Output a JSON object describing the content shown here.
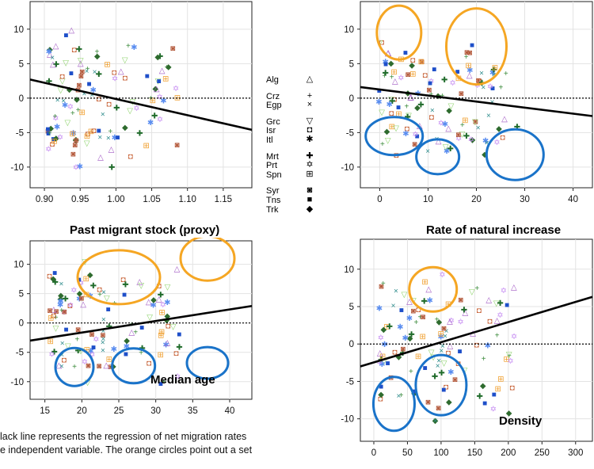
{
  "panels": [
    {
      "id": "migrant",
      "xtitle": "Past migrant stock (proxy)",
      "inner_label": "",
      "x_ticks": [
        "0.90",
        "0.95",
        "1.00",
        "1.05",
        "1.10",
        "1.15"
      ],
      "y_ticks": [
        "10",
        "5",
        "0",
        "-5",
        "-10"
      ]
    },
    {
      "id": "natural",
      "xtitle": "Rate of natural increase",
      "inner_label": "",
      "x_ticks": [
        "0",
        "10",
        "20",
        "30",
        "40"
      ],
      "y_ticks": [
        "10",
        "5",
        "0",
        "-5",
        "-10"
      ]
    },
    {
      "id": "median",
      "xtitle": "",
      "inner_label": "Median age",
      "x_ticks": [
        "15",
        "20",
        "25",
        "30",
        "35",
        "40"
      ],
      "y_ticks": [
        "10",
        "5",
        "0",
        "-5",
        "-10"
      ]
    },
    {
      "id": "density",
      "xtitle": "",
      "inner_label": "Density",
      "x_ticks": [
        "0",
        "50",
        "100",
        "150",
        "200",
        "250",
        "300"
      ],
      "y_ticks": [
        "10",
        "5",
        "0",
        "-5",
        "-10"
      ]
    }
  ],
  "legend": [
    {
      "label": "Alg",
      "symbol": "△"
    },
    {
      "label": "Crz",
      "symbol": "+"
    },
    {
      "label": "Egp",
      "symbol": "×"
    },
    {
      "label": "Grc",
      "symbol": "▽"
    },
    {
      "label": "Isr",
      "symbol": "◘"
    },
    {
      "label": "Itl",
      "symbol": "✱"
    },
    {
      "label": "Mrt",
      "symbol": "✚"
    },
    {
      "label": "Prt",
      "symbol": "✡"
    },
    {
      "label": "Spn",
      "symbol": "⊞"
    },
    {
      "label": "Syr",
      "symbol": "◙"
    },
    {
      "label": "Tns",
      "symbol": "■"
    },
    {
      "label": "Trk",
      "symbol": "◆"
    }
  ],
  "caption": {
    "line1": "lack line represents the regression of net migration rates",
    "line2": "e independent variable. The orange circles point out a set"
  },
  "colors": {
    "regression": "#000000",
    "orange_circle": "#f5a623",
    "blue_circle": "#1a73c9"
  },
  "chart_data": [
    {
      "type": "scatter",
      "title": "",
      "xlabel": "Past migrant stock (proxy)",
      "ylabel": "",
      "xlim": [
        0.88,
        1.19
      ],
      "ylim": [
        -13,
        14
      ],
      "regression": {
        "x": [
          0.88,
          1.19
        ],
        "y": [
          2.7,
          -4.6
        ]
      },
      "zero_line": true
    },
    {
      "type": "scatter",
      "title": "",
      "xlabel": "Rate of natural increase",
      "ylabel": "",
      "xlim": [
        -4,
        44
      ],
      "ylim": [
        -13,
        14
      ],
      "regression": {
        "x": [
          -4,
          44
        ],
        "y": [
          1.6,
          -2.6
        ]
      },
      "zero_line": true,
      "circles": [
        {
          "color": "orange",
          "cx": 4,
          "cy": 9.5
        },
        {
          "color": "orange",
          "cx": 20,
          "cy": 7.5
        },
        {
          "color": "blue",
          "cx": 3,
          "cy": -5.5
        },
        {
          "color": "blue",
          "cx": 12,
          "cy": -8.5
        },
        {
          "color": "blue",
          "cx": 28,
          "cy": -8.2
        }
      ]
    },
    {
      "type": "scatter",
      "title": "",
      "xlabel": "Median age",
      "ylabel": "",
      "xlim": [
        13,
        43
      ],
      "ylim": [
        -13,
        14
      ],
      "regression": {
        "x": [
          13,
          43
        ],
        "y": [
          -3,
          2.9
        ]
      },
      "zero_line": true,
      "circles": [
        {
          "color": "orange",
          "cx": 25,
          "cy": 7.8
        },
        {
          "color": "orange",
          "cx": 37,
          "cy": 11
        },
        {
          "color": "blue",
          "cx": 19,
          "cy": -7.5
        },
        {
          "color": "blue",
          "cx": 27,
          "cy": -7.3
        },
        {
          "color": "blue",
          "cx": 37,
          "cy": -6.8
        }
      ]
    },
    {
      "type": "scatter",
      "title": "",
      "xlabel": "Density",
      "ylabel": "",
      "xlim": [
        -20,
        325
      ],
      "ylim": [
        -13,
        14
      ],
      "regression": {
        "x": [
          -20,
          325
        ],
        "y": [
          -3,
          6.3
        ]
      },
      "zero_line": true,
      "circles": [
        {
          "color": "orange",
          "cx": 88,
          "cy": 7.3
        },
        {
          "color": "blue",
          "cx": 30,
          "cy": -8
        },
        {
          "color": "blue",
          "cx": 100,
          "cy": -5.5
        }
      ]
    }
  ]
}
